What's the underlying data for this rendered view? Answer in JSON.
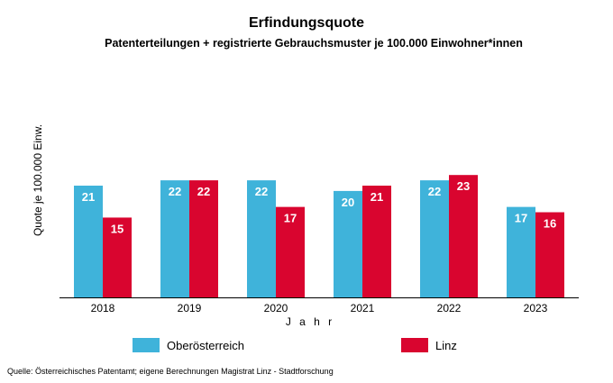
{
  "chart_data": {
    "type": "bar",
    "title": "Erfindungsquote",
    "subtitle": "Patenterteilungen + registrierte Gebrauchsmuster je 100.000 Einwohner*innen",
    "xlabel": "J a h r",
    "ylabel": "Quote je 100.000 Einw.",
    "categories": [
      "2018",
      "2019",
      "2020",
      "2021",
      "2022",
      "2023"
    ],
    "series": [
      {
        "name": "Oberösterreich",
        "color": "#3fb3da",
        "values": [
          21,
          22,
          22,
          20,
          22,
          17
        ]
      },
      {
        "name": "Linz",
        "color": "#d9052f",
        "values": [
          15,
          22,
          17,
          21,
          23,
          16
        ]
      }
    ],
    "ylim": [
      0,
      42
    ],
    "grid": false,
    "legend": "bottom",
    "source": "Quelle: Österreichisches Patentamt; eigene Berechnungen Magistrat Linz - Stadtforschung"
  }
}
